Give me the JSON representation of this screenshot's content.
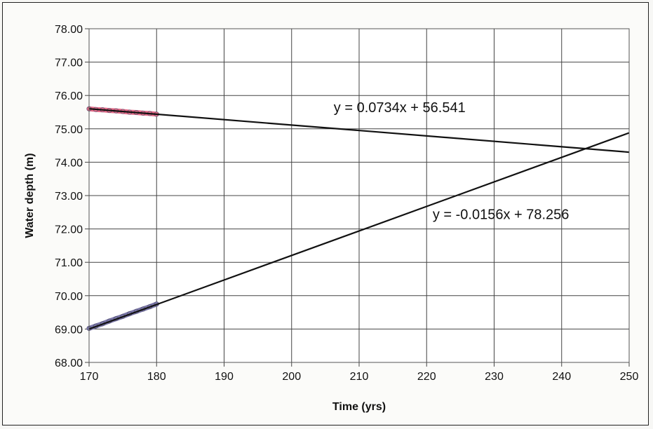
{
  "chart_data": {
    "type": "line",
    "title": "",
    "xlabel": "Time (yrs)",
    "ylabel": "Water depth (m)",
    "xlim": [
      170,
      250
    ],
    "ylim": [
      68,
      78
    ],
    "grid": true,
    "x_ticks": [
      "170",
      "180",
      "190",
      "200",
      "210",
      "220",
      "230",
      "240",
      "250"
    ],
    "y_ticks": [
      "68.00",
      "69.00",
      "70.00",
      "71.00",
      "72.00",
      "73.00",
      "74.00",
      "75.00",
      "76.00",
      "77.00",
      "78.00"
    ],
    "series": [
      {
        "color": "#e46a86",
        "style": "thick-marker-band",
        "x": [
          170,
          171,
          172,
          173,
          174,
          175,
          176,
          177,
          178,
          179,
          180
        ],
        "y": [
          75.6,
          75.58,
          75.57,
          75.55,
          75.54,
          75.52,
          75.5,
          75.49,
          75.47,
          75.46,
          75.44
        ]
      },
      {
        "color": "#7a76a6",
        "style": "thick-marker-band",
        "x": [
          170,
          171,
          172,
          173,
          174,
          175,
          176,
          177,
          178,
          179,
          180
        ],
        "y": [
          69.02,
          69.09,
          69.16,
          69.24,
          69.31,
          69.38,
          69.46,
          69.53,
          69.6,
          69.67,
          69.75
        ]
      },
      {
        "color": "#111111",
        "style": "trendline",
        "x": [
          170,
          250
        ],
        "y": [
          75.6,
          74.3
        ]
      },
      {
        "color": "#111111",
        "style": "trendline",
        "x": [
          170,
          250
        ],
        "y": [
          69.0,
          74.88
        ]
      }
    ],
    "annotations": [
      {
        "text": "y = 0.0734x + 56.541",
        "x": 216,
        "y": 75.5
      },
      {
        "text": "y = -0.0156x + 78.256",
        "x": 231,
        "y": 72.3
      }
    ]
  }
}
